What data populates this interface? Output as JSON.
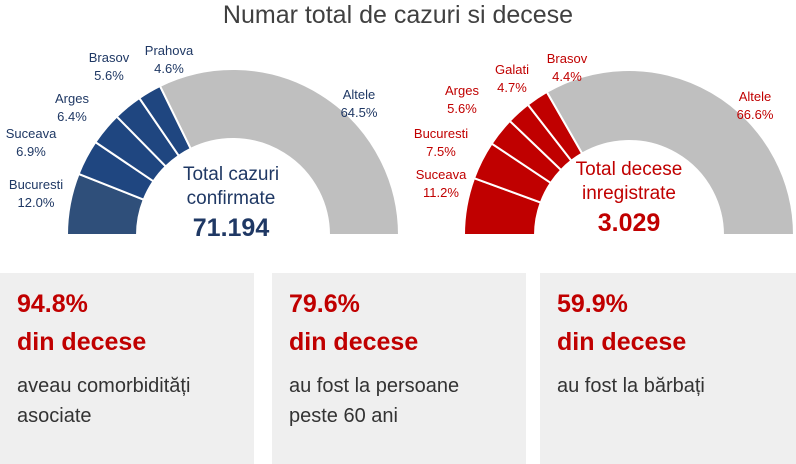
{
  "title": "Numar total de cazuri si decese",
  "chart_data": [
    {
      "type": "pie",
      "variant": "half-donut",
      "color": "#1f4680",
      "other_color": "#bfbfbf",
      "center_label": "Total cazuri confirmate",
      "center_label_lines": [
        "Total cazuri",
        "confirmate"
      ],
      "total": "71.194",
      "slices": [
        {
          "name": "Bucuresti",
          "value": 12.0,
          "label": "12.0%"
        },
        {
          "name": "Suceava",
          "value": 6.9,
          "label": "6.9%"
        },
        {
          "name": "Arges",
          "value": 6.4,
          "label": "6.4%"
        },
        {
          "name": "Brasov",
          "value": 5.6,
          "label": "5.6%"
        },
        {
          "name": "Prahova",
          "value": 4.6,
          "label": "4.6%"
        },
        {
          "name": "Altele",
          "value": 64.5,
          "label": "64.5%"
        }
      ]
    },
    {
      "type": "pie",
      "variant": "half-donut",
      "color": "#c00000",
      "other_color": "#bfbfbf",
      "center_label": "Total decese inregistrate",
      "center_label_lines": [
        "Total decese",
        "inregistrate"
      ],
      "total": "3.029",
      "slices": [
        {
          "name": "Suceava",
          "value": 11.2,
          "label": "11.2%"
        },
        {
          "name": "Bucuresti",
          "value": 7.5,
          "label": "7.5%"
        },
        {
          "name": "Arges",
          "value": 5.6,
          "label": "5.6%"
        },
        {
          "name": "Galati",
          "value": 4.7,
          "label": "4.7%"
        },
        {
          "name": "Brasov",
          "value": 4.4,
          "label": "4.4%"
        },
        {
          "name": "Altele",
          "value": 66.6,
          "label": "66.6%"
        }
      ]
    }
  ],
  "stats": [
    {
      "percent": "94.8%",
      "subtitle": "din decese",
      "description": "aveau comorbidități asociate"
    },
    {
      "percent": "79.6%",
      "subtitle": "din decese",
      "description": "au fost la persoane peste 60 ani"
    },
    {
      "percent": "59.9%",
      "subtitle": "din decese",
      "description": "au fost la bărbați"
    }
  ]
}
